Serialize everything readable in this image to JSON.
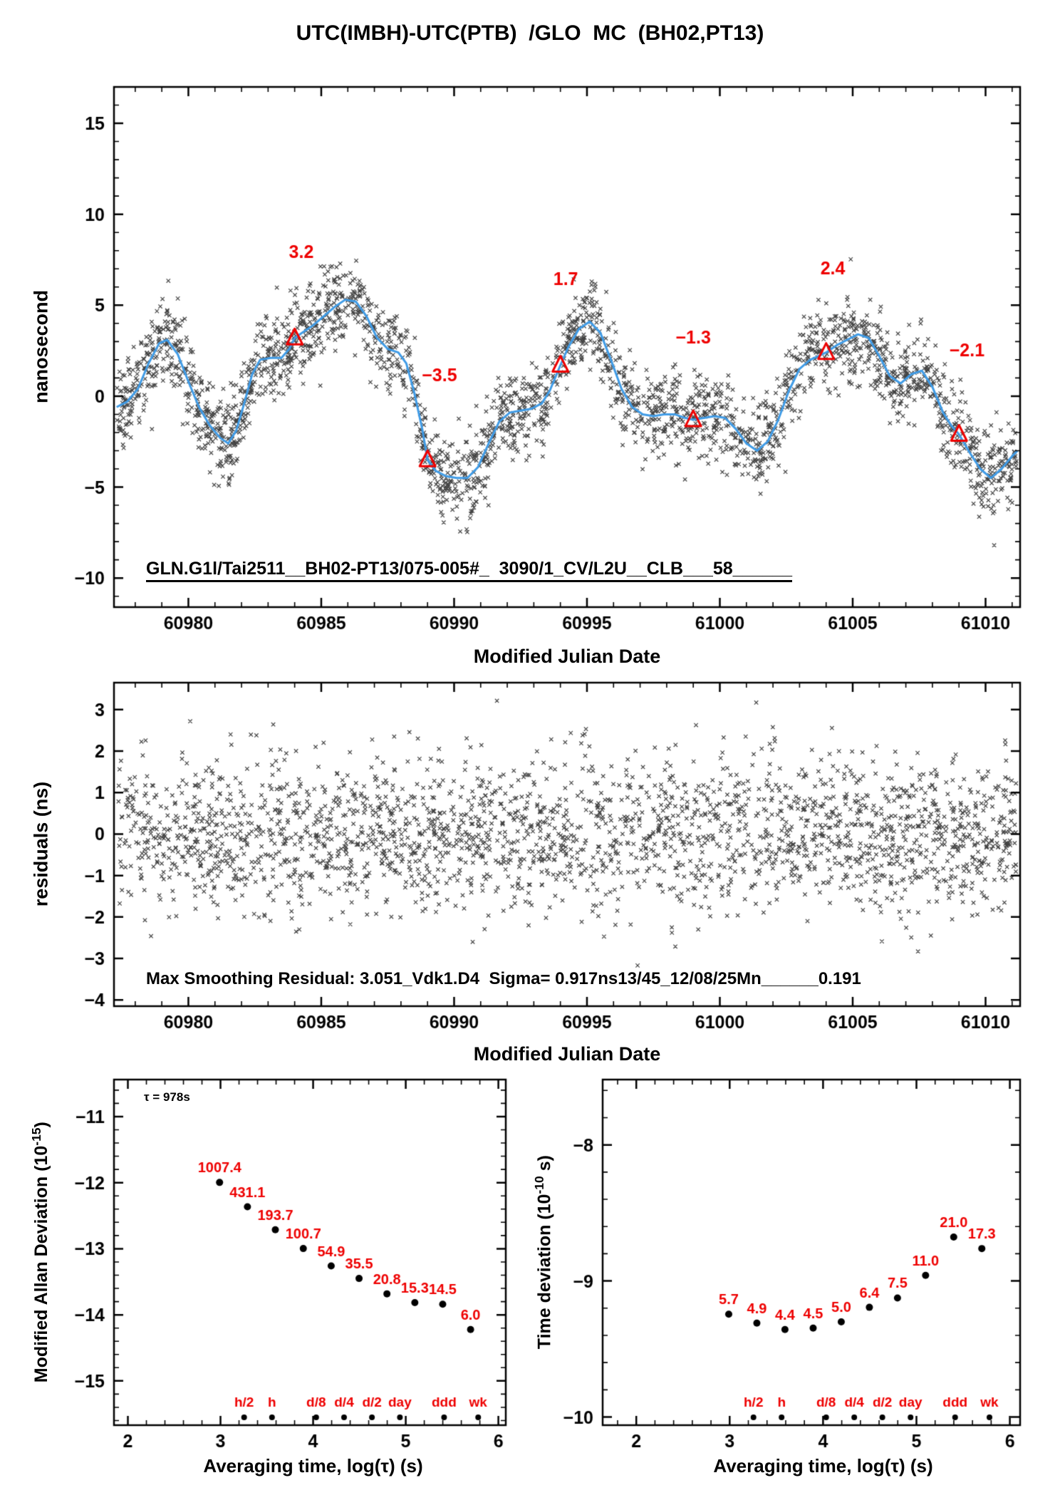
{
  "title": "UTC(IMBH)-UTC(PTB)  /GLO  MC  (BH02,PT13)",
  "colors": {
    "trend_blue": "#3f9be6",
    "marker_red": "#ee0000",
    "scatter_black": "#1a1a1a",
    "axis_black": "#000000"
  },
  "chart_data": [
    {
      "id": "phase",
      "type": "scatter",
      "title": "UTC(IMBH)-UTC(PTB)  /GLO  MC  (BH02,PT13)",
      "xlabel": "Modified Julian Date",
      "ylabel": "nanosecond",
      "xlim": [
        60977.2,
        61011.3
      ],
      "ylim": [
        -11.6,
        17.0
      ],
      "xticks": [
        60980,
        60985,
        60990,
        60995,
        61000,
        61005,
        61010
      ],
      "yticks": [
        15,
        10,
        5,
        0,
        -5,
        -10
      ],
      "x_minor_step": 1,
      "y_minor_step": 1,
      "annotation": "GLN.G1l/Tai2511__BH02-PT13/075-005#_  3090/1_CV/L2U__CLB___58______",
      "noise_sd": 1.2,
      "n_points": 2800,
      "seed": 20250812,
      "trend": [
        [
          60977.3,
          -0.6
        ],
        [
          60977.7,
          -0.3
        ],
        [
          60978.1,
          0.4
        ],
        [
          60978.5,
          1.8
        ],
        [
          60978.9,
          2.9
        ],
        [
          60979.2,
          3.1
        ],
        [
          60979.6,
          2.3
        ],
        [
          60980.0,
          0.8
        ],
        [
          60980.4,
          -0.6
        ],
        [
          60980.8,
          -1.6
        ],
        [
          60981.2,
          -2.3
        ],
        [
          60981.5,
          -2.6
        ],
        [
          60981.8,
          -1.9
        ],
        [
          60982.1,
          -0.4
        ],
        [
          60982.4,
          1.2
        ],
        [
          60982.7,
          2.0
        ],
        [
          60983.1,
          2.1
        ],
        [
          60983.5,
          2.1
        ],
        [
          60983.8,
          2.6
        ],
        [
          60984.0,
          3.2
        ],
        [
          60984.3,
          3.5
        ],
        [
          60984.7,
          3.9
        ],
        [
          60985.1,
          4.4
        ],
        [
          60985.5,
          4.9
        ],
        [
          60985.9,
          5.3
        ],
        [
          60986.3,
          5.2
        ],
        [
          60986.7,
          4.4
        ],
        [
          60987.1,
          3.2
        ],
        [
          60987.5,
          2.6
        ],
        [
          60987.9,
          2.4
        ],
        [
          60988.2,
          1.8
        ],
        [
          60988.5,
          0.2
        ],
        [
          60988.8,
          -1.8
        ],
        [
          60989.0,
          -3.5
        ],
        [
          60989.3,
          -4.1
        ],
        [
          60989.7,
          -4.4
        ],
        [
          60990.1,
          -4.5
        ],
        [
          60990.5,
          -4.5
        ],
        [
          60990.9,
          -3.9
        ],
        [
          60991.3,
          -2.6
        ],
        [
          60991.7,
          -1.4
        ],
        [
          60992.1,
          -0.9
        ],
        [
          60992.5,
          -0.8
        ],
        [
          60992.9,
          -0.7
        ],
        [
          60993.3,
          -0.4
        ],
        [
          60993.6,
          0.3
        ],
        [
          60993.8,
          1.0
        ],
        [
          60994.0,
          1.7
        ],
        [
          60994.3,
          2.7
        ],
        [
          60994.7,
          3.7
        ],
        [
          60995.1,
          4.1
        ],
        [
          60995.5,
          3.5
        ],
        [
          60995.9,
          2.0
        ],
        [
          60996.3,
          0.4
        ],
        [
          60996.7,
          -0.6
        ],
        [
          60997.1,
          -1.0
        ],
        [
          60997.5,
          -1.1
        ],
        [
          60997.9,
          -1.0
        ],
        [
          60998.3,
          -1.0
        ],
        [
          60998.7,
          -1.2
        ],
        [
          60999.0,
          -1.3
        ],
        [
          60999.4,
          -1.2
        ],
        [
          60999.8,
          -1.1
        ],
        [
          61000.2,
          -1.2
        ],
        [
          61000.6,
          -1.8
        ],
        [
          61001.0,
          -2.6
        ],
        [
          61001.4,
          -3.0
        ],
        [
          61001.8,
          -2.5
        ],
        [
          61002.2,
          -1.3
        ],
        [
          61002.6,
          0.3
        ],
        [
          61003.0,
          1.5
        ],
        [
          61003.4,
          2.0
        ],
        [
          61003.7,
          2.2
        ],
        [
          61004.0,
          2.4
        ],
        [
          61004.4,
          2.8
        ],
        [
          61004.8,
          3.1
        ],
        [
          61005.2,
          3.4
        ],
        [
          61005.6,
          3.2
        ],
        [
          61006.0,
          2.2
        ],
        [
          61006.4,
          1.1
        ],
        [
          61006.8,
          0.7
        ],
        [
          61007.2,
          1.2
        ],
        [
          61007.6,
          1.4
        ],
        [
          61008.0,
          0.5
        ],
        [
          61008.4,
          -0.9
        ],
        [
          61008.7,
          -1.6
        ],
        [
          61009.0,
          -2.1
        ],
        [
          61009.4,
          -3.1
        ],
        [
          61009.8,
          -4.0
        ],
        [
          61010.2,
          -4.5
        ],
        [
          61010.6,
          -4.0
        ],
        [
          61011.0,
          -3.3
        ],
        [
          61011.2,
          -3.0
        ]
      ],
      "calibration_markers": [
        {
          "x": 60984,
          "y": 3.2,
          "label": "3.2",
          "label_x": 60984.25,
          "label_y": 7.6
        },
        {
          "x": 60989,
          "y": -3.5,
          "label": "-3.5",
          "label_x": 60989.45,
          "label_y": 0.8
        },
        {
          "x": 60994,
          "y": 1.7,
          "label": "1.7",
          "label_x": 60994.2,
          "label_y": 6.1
        },
        {
          "x": 60999,
          "y": -1.3,
          "label": "-1.3",
          "label_x": 60999.0,
          "label_y": 2.9
        },
        {
          "x": 61004,
          "y": 2.4,
          "label": "2.4",
          "label_x": 61004.25,
          "label_y": 6.7
        },
        {
          "x": 61009,
          "y": -2.1,
          "label": "-2.1",
          "label_x": 61009.3,
          "label_y": 2.2
        }
      ]
    },
    {
      "id": "residuals",
      "type": "scatter",
      "xlabel": "Modified Julian Date",
      "ylabel": "residuals (ns)",
      "xlim": [
        60977.2,
        61011.3
      ],
      "ylim": [
        -4.15,
        3.65
      ],
      "xticks": [
        60980,
        60985,
        60990,
        60995,
        61000,
        61005,
        61010
      ],
      "yticks": [
        3,
        2,
        1,
        0,
        -1,
        -2,
        -3,
        -4
      ],
      "x_minor_step": 1,
      "y_minor_step": null,
      "annotation": "Max Smoothing Residual: 3.051_Vdk1.D4  Sigma= 0.917ns13/45_12/08/25Mn______0.191",
      "sigma": 0.917,
      "clip": 3.25,
      "n_points": 2500,
      "seed": 424242
    },
    {
      "id": "mdev",
      "type": "scatter",
      "xlabel": "Averaging time, log(τ) (s)",
      "ylabel_parts": {
        "pre": "Modified Allan Deviation (10",
        "sup": "-15",
        "post": ")"
      },
      "tau_note": "τ = 978s",
      "xlim": [
        1.85,
        6.08
      ],
      "ylim": [
        -15.67,
        -10.44
      ],
      "xticks": [
        2,
        3,
        4,
        5,
        6
      ],
      "yticks": [
        -11,
        -12,
        -13,
        -14,
        -15
      ],
      "x_minor_step": 0.2,
      "y_minor_step": 0.2,
      "unit_exp": -15,
      "log_tau": [
        2.99,
        3.291,
        3.592,
        3.894,
        4.195,
        4.496,
        4.797,
        5.098,
        5.399,
        5.7
      ],
      "values": [
        1007.4,
        431.1,
        193.7,
        100.7,
        54.9,
        35.5,
        20.8,
        15.3,
        14.5,
        6.0
      ],
      "value_labels": [
        "1007.4",
        "431.1",
        "193.7",
        "100.7",
        "54.9",
        "35.5",
        "20.8",
        "15.3",
        "14.5",
        "6.0"
      ],
      "time_marks": {
        "labels": [
          "h/2",
          "h",
          "d/8",
          "d/4",
          "d/2",
          "day",
          "ddd",
          "wk"
        ],
        "log_tau": [
          3.255,
          3.556,
          4.033,
          4.334,
          4.635,
          4.937,
          5.414,
          5.782
        ]
      }
    },
    {
      "id": "tdev",
      "type": "scatter",
      "xlabel": "Averaging time, log(τ) (s)",
      "ylabel_parts": {
        "pre": "Time deviation (10",
        "sup": "-10",
        "post": " s)"
      },
      "xlim": [
        1.64,
        6.11
      ],
      "ylim": [
        -10.06,
        -7.52
      ],
      "xticks": [
        2,
        3,
        4,
        5,
        6
      ],
      "yticks": [
        -8,
        -9,
        -10
      ],
      "x_minor_step": 0.2,
      "y_minor_step": 0.2,
      "unit_exp": -10,
      "log_tau": [
        2.99,
        3.291,
        3.592,
        3.894,
        4.195,
        4.496,
        4.797,
        5.098,
        5.399,
        5.7
      ],
      "values": [
        5.7,
        4.9,
        4.4,
        4.5,
        5.0,
        6.4,
        7.5,
        11.0,
        21.0,
        17.3
      ],
      "value_labels": [
        "5.7",
        "4.9",
        "4.4",
        "4.5",
        "5.0",
        "6.4",
        "7.5",
        "11.0",
        "21.0",
        "17.3"
      ],
      "time_marks": {
        "labels": [
          "h/2",
          "h",
          "d/8",
          "d/4",
          "d/2",
          "day",
          "ddd",
          "wk"
        ],
        "log_tau": [
          3.255,
          3.556,
          4.033,
          4.334,
          4.635,
          4.937,
          5.414,
          5.782
        ]
      }
    }
  ]
}
